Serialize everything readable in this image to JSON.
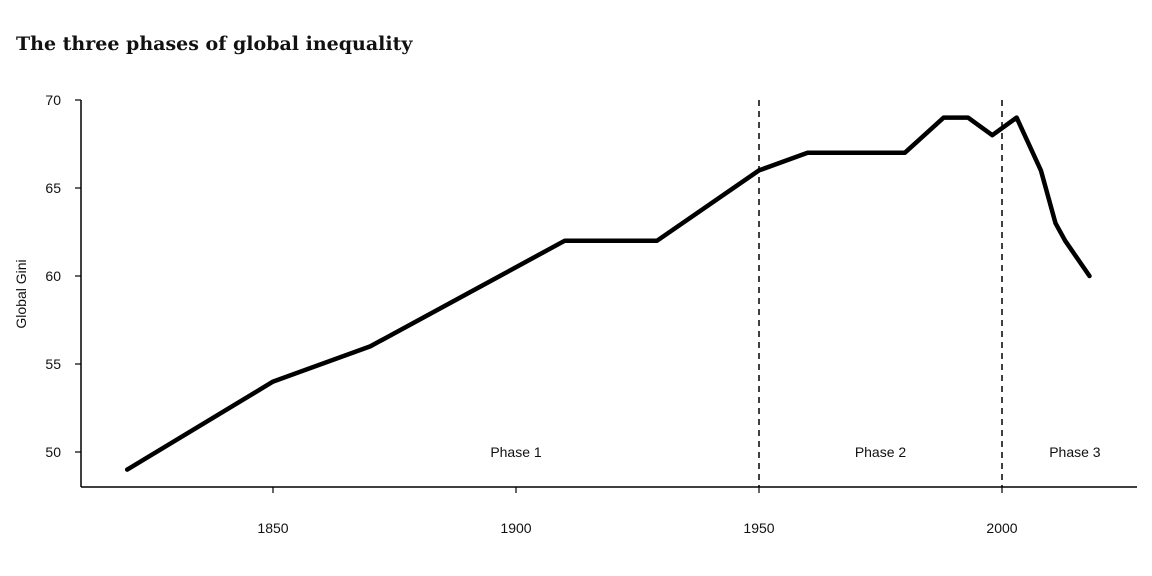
{
  "chart_data": {
    "type": "line",
    "title": "The three phases of global inequality",
    "xlabel": "",
    "ylabel": "Global Gini",
    "xlim": [
      1810,
      2024
    ],
    "ylim": [
      48,
      70
    ],
    "x_ticks": [
      1850,
      1900,
      1950,
      2000
    ],
    "y_ticks": [
      50,
      55,
      60,
      65,
      70
    ],
    "grid": false,
    "series": [
      {
        "x": [
          1820,
          1850,
          1870,
          1890,
          1910,
          1929,
          1950,
          1960,
          1970,
          1980,
          1988,
          1993,
          1998,
          2003,
          2008,
          2011,
          2013,
          2018
        ],
        "y": [
          49,
          54,
          56,
          59,
          62,
          62,
          66,
          67,
          67,
          67,
          69,
          69,
          68,
          69,
          66,
          63,
          62,
          60
        ],
        "color": "#000000"
      }
    ],
    "vlines": [
      {
        "x": 1950,
        "style": "dashed"
      },
      {
        "x": 2000,
        "style": "dashed"
      }
    ],
    "annotations": [
      {
        "text": "Phase 1",
        "x": 1900,
        "y": 50
      },
      {
        "text": "Phase 2",
        "x": 1975,
        "y": 50
      },
      {
        "text": "Phase 3",
        "x": 2015,
        "y": 50
      }
    ]
  }
}
